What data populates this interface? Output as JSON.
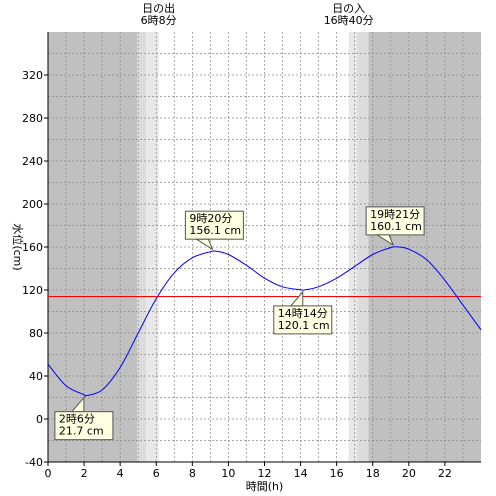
{
  "chart_data": {
    "type": "line",
    "xlabel": "時間(h)",
    "ylabel": "水位(cm)",
    "xlim": [
      0,
      24
    ],
    "ylim": [
      -40,
      360
    ],
    "x_ticks": [
      0,
      2,
      4,
      6,
      8,
      10,
      12,
      14,
      16,
      18,
      20,
      22
    ],
    "y_ticks": [
      -40,
      0,
      40,
      80,
      120,
      160,
      200,
      240,
      280,
      320
    ],
    "grid": true,
    "sun": {
      "sunrise": {
        "label": "日の出",
        "time": "6時8分",
        "hour": 6.133
      },
      "sunset": {
        "label": "日の入",
        "time": "16時40分",
        "hour": 16.667
      }
    },
    "reference_line": {
      "value": 114,
      "color": "#ff0000"
    },
    "series": [
      {
        "color": "#0000ff",
        "x": [
          0,
          1,
          2,
          2.1,
          3,
          4,
          5,
          6,
          7,
          8,
          9,
          9.33,
          10,
          11,
          12,
          13,
          14,
          14.23,
          15,
          16,
          17,
          18,
          19,
          19.35,
          20,
          21,
          22,
          23,
          24
        ],
        "y": [
          51,
          31,
          22.5,
          21.7,
          27,
          48,
          80,
          112,
          136,
          150,
          155.5,
          156.1,
          153,
          143,
          131,
          123,
          120.3,
          120.1,
          123,
          131,
          142,
          153,
          159.5,
          160.1,
          158,
          148,
          129,
          106,
          83
        ]
      }
    ],
    "annotations": [
      {
        "time": "2時6分",
        "value": "21.7 cm",
        "hour": 2.1,
        "level": 21.7
      },
      {
        "time": "9時20分",
        "value": "156.1 cm",
        "hour": 9.333,
        "level": 156.1
      },
      {
        "time": "14時14分",
        "value": "120.1 cm",
        "hour": 14.233,
        "level": 120.1
      },
      {
        "time": "19時21分",
        "value": "160.1 cm",
        "hour": 19.35,
        "level": 160.1
      }
    ]
  }
}
